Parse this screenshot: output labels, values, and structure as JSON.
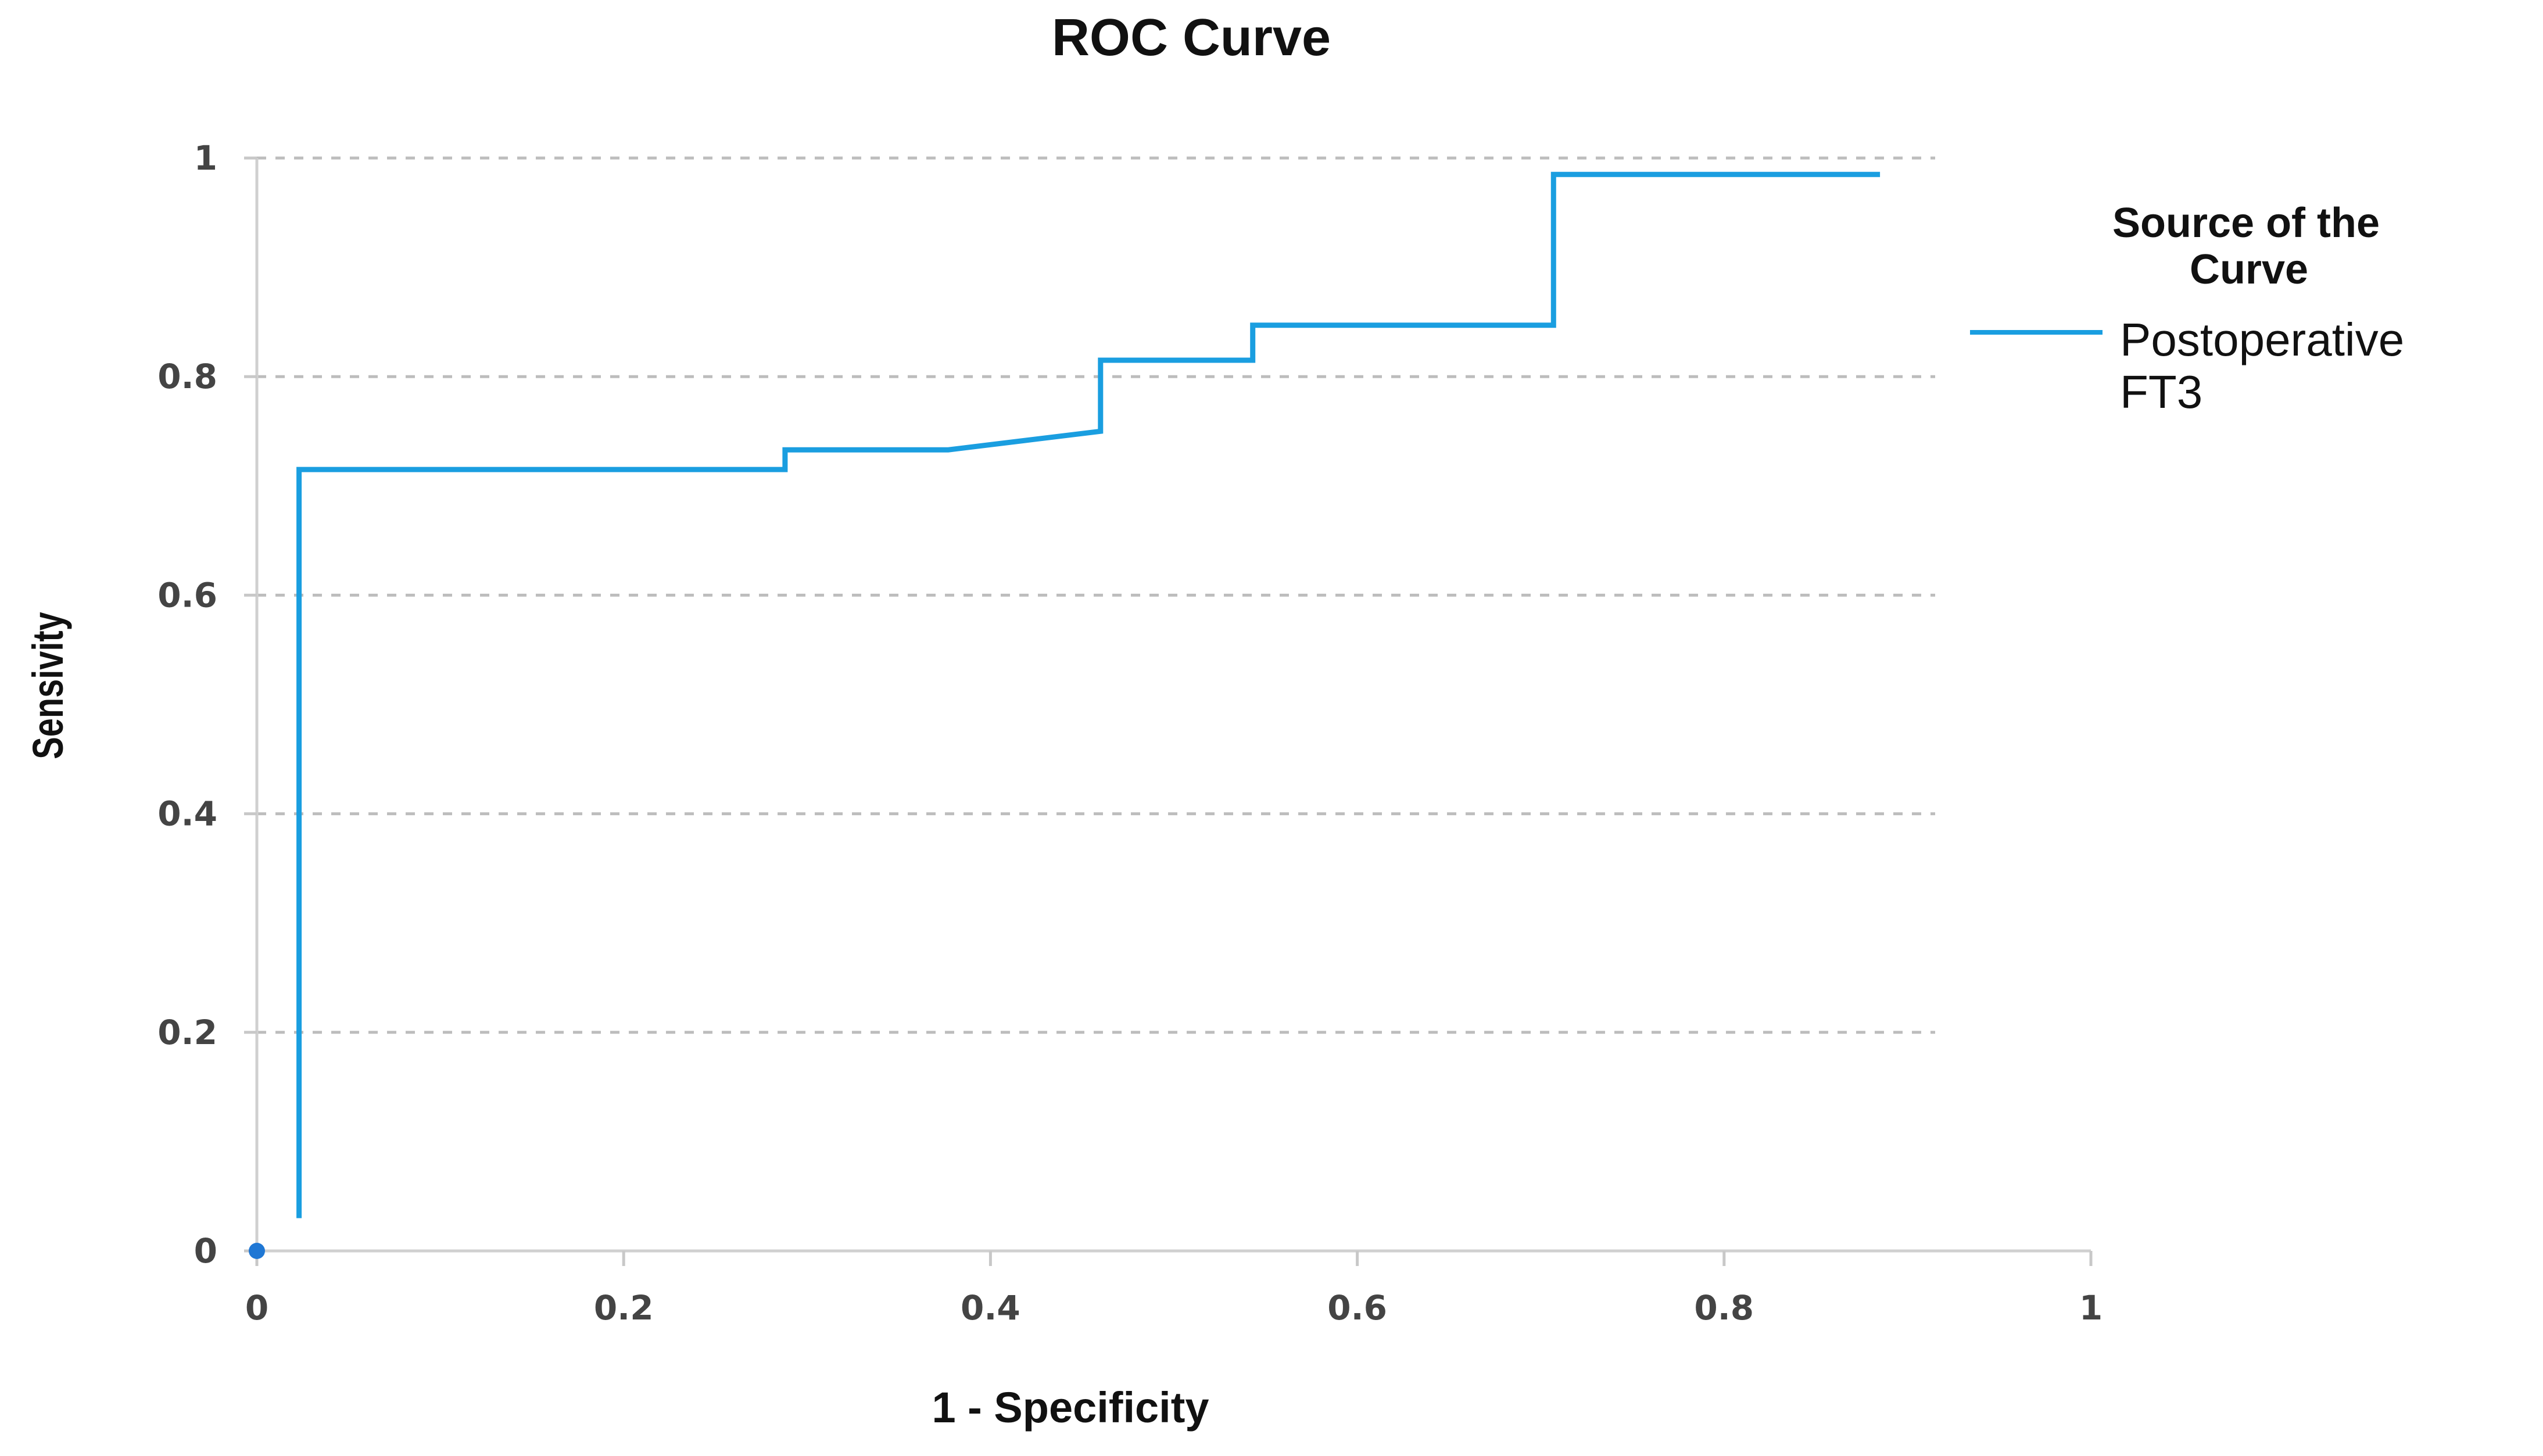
{
  "chart_data": {
    "type": "line",
    "title": "ROC Curve",
    "xlabel": "1 - Specificity",
    "ylabel": "Sensivity",
    "xlim": [
      0,
      1
    ],
    "ylim": [
      0,
      1
    ],
    "x_ticks": [
      "0",
      "0.2",
      "0.4",
      "0.6",
      "0.8",
      "1"
    ],
    "y_ticks": [
      "0",
      "0.2",
      "0.4",
      "0.6",
      "0.8",
      "1"
    ],
    "grid": "horizontal-dashed",
    "legend": {
      "title_lines": [
        "Source of the",
        "Curve"
      ],
      "placement": "right"
    },
    "series": [
      {
        "name": "Postoperative FT3",
        "name_lines": [
          "Postoperative",
          "FT3"
        ],
        "color": "#1a9ee0",
        "points": [
          [
            0.023,
            0.03
          ],
          [
            0.023,
            0.715
          ],
          [
            0.288,
            0.715
          ],
          [
            0.288,
            0.733
          ],
          [
            0.377,
            0.733
          ],
          [
            0.46,
            0.75
          ],
          [
            0.46,
            0.815
          ],
          [
            0.543,
            0.815
          ],
          [
            0.543,
            0.847
          ],
          [
            0.707,
            0.847
          ],
          [
            0.707,
            0.985
          ],
          [
            0.885,
            0.985
          ]
        ]
      }
    ],
    "origin_marker_color": "#1f77d4"
  }
}
